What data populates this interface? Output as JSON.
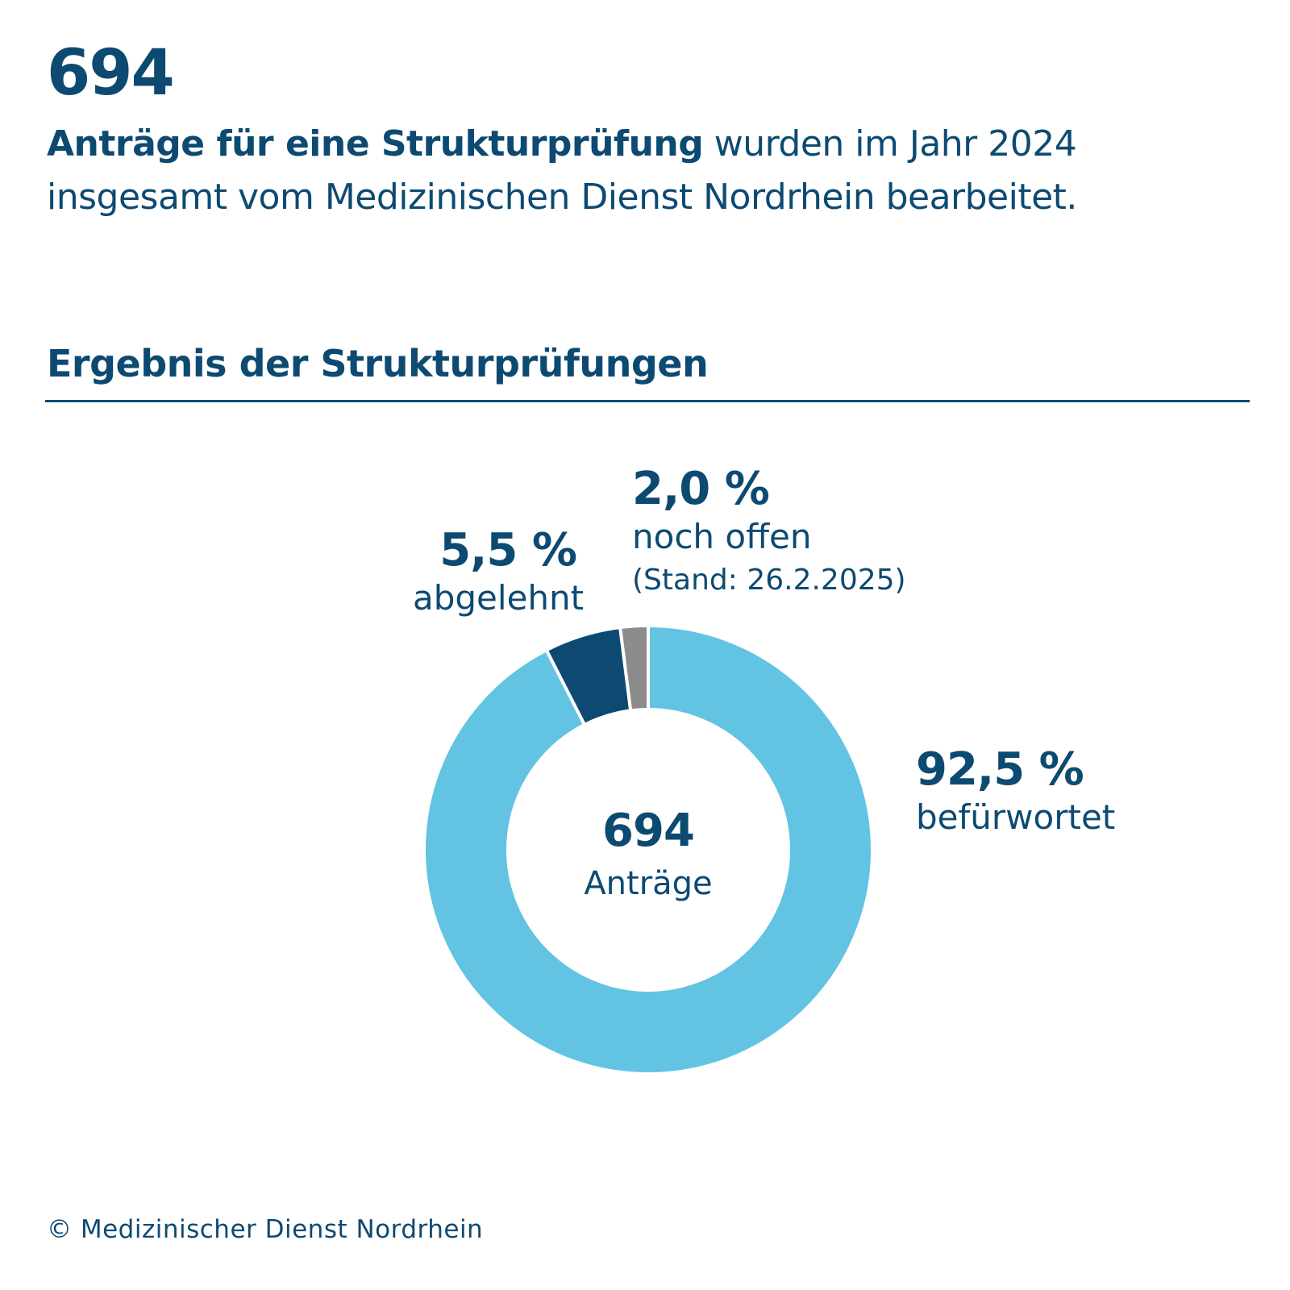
{
  "header": {
    "big_number": "694",
    "intro_bold": "Anträge für eine Strukturprüfung",
    "intro_rest": " wurden im Jahr 2024 insgesamt vom Medizinischen Dienst Nordrhein bearbeitet."
  },
  "chart_data": {
    "type": "pie",
    "title": "Ergebnis der Strukturprüfungen",
    "center_value": "694",
    "center_label": "Anträge",
    "slices": [
      {
        "name": "befürwortet",
        "value": 92.5,
        "label": "92,5 %",
        "color": "#62c3e2"
      },
      {
        "name": "abgelehnt",
        "value": 5.5,
        "label": "5,5 %",
        "color": "#0d4a72"
      },
      {
        "name": "noch offen",
        "value": 2.0,
        "label": "2,0 %",
        "color": "#8c8c8c",
        "note": "(Stand: 26.2.2025)"
      }
    ]
  },
  "footer": {
    "copyright": "© Medizinischer Dienst Nordrhein"
  }
}
